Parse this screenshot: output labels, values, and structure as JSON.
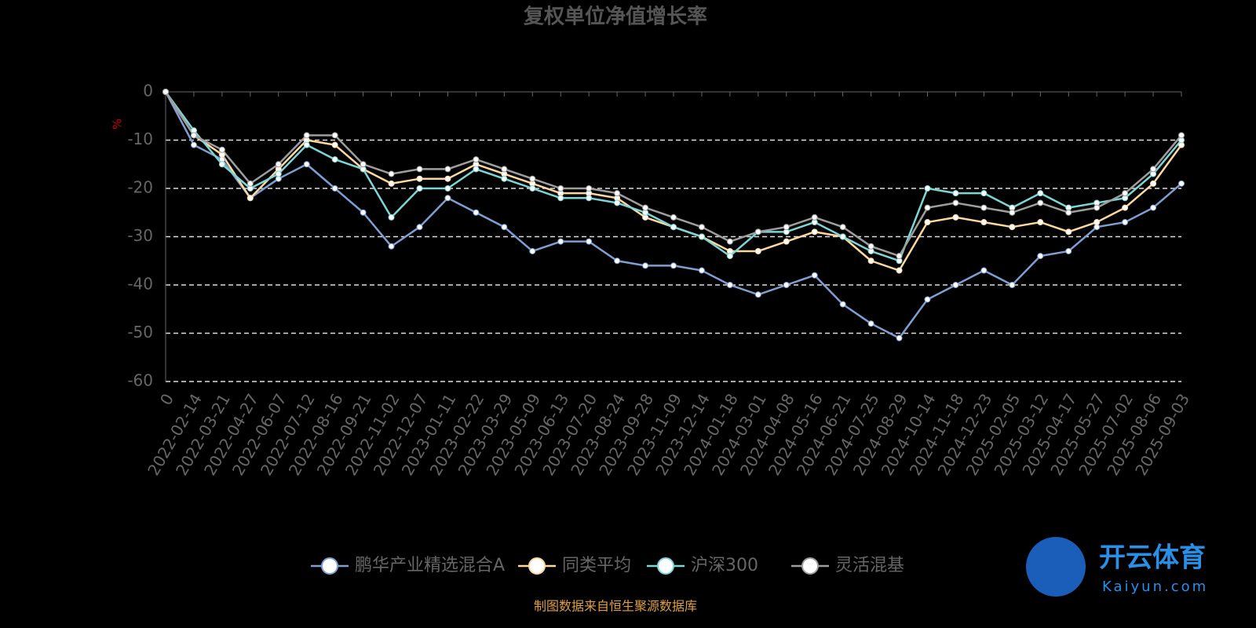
{
  "chart_data": {
    "type": "line",
    "title": "复权单位净值增长率",
    "y_label": "%",
    "categories": [
      "0",
      "2022-02-14",
      "2022-03-21",
      "2022-04-27",
      "2022-06-07",
      "2022-07-12",
      "2022-08-16",
      "2022-09-21",
      "2022-11-02",
      "2022-12-07",
      "2023-01-11",
      "2023-02-22",
      "2023-03-29",
      "2023-05-09",
      "2023-06-13",
      "2023-07-20",
      "2023-08-24",
      "2023-09-28",
      "2023-11-09",
      "2023-12-14",
      "2024-01-18",
      "2024-03-01",
      "2024-04-08",
      "2024-05-16",
      "2024-06-21",
      "2024-07-25",
      "2024-08-29",
      "2024-10-14",
      "2024-11-18",
      "2024-12-23",
      "2025-02-05",
      "2025-03-12",
      "2025-04-17",
      "2025-05-27",
      "2025-07-02",
      "2025-08-06",
      "2025-09-03"
    ],
    "series": [
      {
        "name": "鹏华产业精选混合A",
        "color": "#7f9fd2",
        "values": [
          0,
          -11,
          -14,
          -22,
          -18,
          -15,
          -20,
          -25,
          -32,
          -28,
          -22,
          -25,
          -28,
          -33,
          -31,
          -31,
          -35,
          -36,
          -36,
          -37,
          -40,
          -42,
          -40,
          -38,
          -44,
          -48,
          -51,
          -43,
          -40,
          -37,
          -40,
          -34,
          -33,
          -28,
          -27,
          -24,
          -19
        ]
      },
      {
        "name": "同类平均",
        "color": "#fcd8a0",
        "values": [
          0,
          -9,
          -13,
          -22,
          -16,
          -10,
          -11,
          -16,
          -19,
          -18,
          -18,
          -15,
          -17,
          -19,
          -21,
          -21,
          -22,
          -26,
          -28,
          -30,
          -33,
          -33,
          -31,
          -29,
          -30,
          -35,
          -37,
          -27,
          -26,
          -27,
          -28,
          -27,
          -29,
          -27,
          -24,
          -19,
          -11
        ]
      },
      {
        "name": "沪深300",
        "color": "#7dd6d6",
        "values": [
          0,
          -8,
          -15,
          -20,
          -17,
          -11,
          -14,
          -16,
          -26,
          -20,
          -20,
          -16,
          -18,
          -20,
          -22,
          -22,
          -23,
          -25,
          -28,
          -30,
          -34,
          -29,
          -29,
          -27,
          -30,
          -33,
          -35,
          -20,
          -21,
          -21,
          -24,
          -21,
          -24,
          -23,
          -22,
          -17,
          -10
        ]
      },
      {
        "name": "灵活混基",
        "color": "#9e9e9e",
        "values": [
          0,
          -9,
          -12,
          -19,
          -15,
          -9,
          -9,
          -15,
          -17,
          -16,
          -16,
          -14,
          -16,
          -18,
          -20,
          -20,
          -21,
          -24,
          -26,
          -28,
          -31,
          -29,
          -28,
          -26,
          -28,
          -32,
          -34,
          -24,
          -23,
          -24,
          -25,
          -23,
          -25,
          -24,
          -21,
          -16,
          -9
        ]
      }
    ],
    "ylim": [
      -60,
      0
    ],
    "yticks": [
      0,
      -10,
      -20,
      -30,
      -40,
      -50,
      -60
    ],
    "grid": true,
    "legend": "bottom",
    "source": "制图数据来自恒生聚源数据库"
  },
  "watermark": {
    "name": "开云体育",
    "site": "Kaiyun.com"
  }
}
